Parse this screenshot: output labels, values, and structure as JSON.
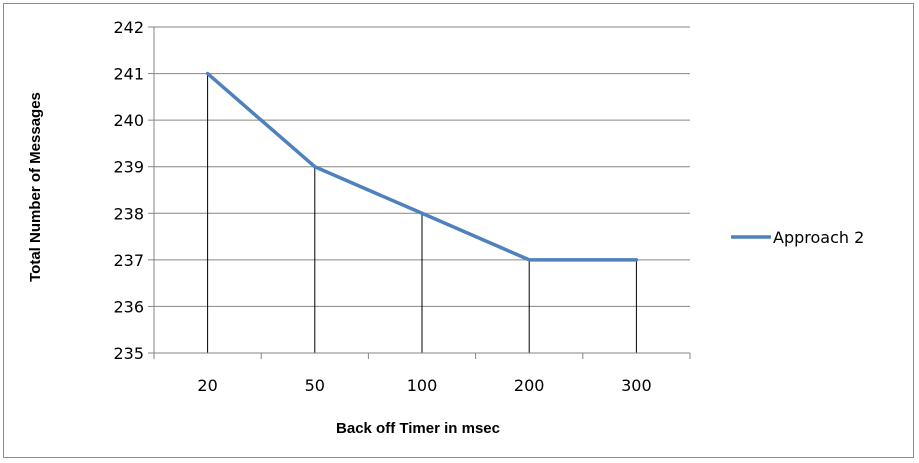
{
  "chart_data": {
    "type": "line",
    "title": "",
    "xlabel": "Back off Timer in msec",
    "ylabel": "Total Number of Messages",
    "categories": [
      "20",
      "50",
      "100",
      "200",
      "300"
    ],
    "series": [
      {
        "name": "Approach 2",
        "values": [
          241,
          239,
          238,
          237,
          237
        ],
        "color": "#4f81bd"
      }
    ],
    "ylim": [
      235,
      242
    ],
    "yticks": [
      "235",
      "236",
      "237",
      "238",
      "239",
      "240",
      "241",
      "242"
    ],
    "grid": true,
    "drop_lines": true,
    "legend": "right"
  }
}
